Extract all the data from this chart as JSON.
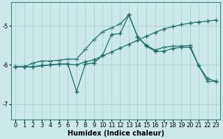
{
  "xlabel": "Humidex (Indice chaleur)",
  "bg_color": "#cce8e8",
  "line_color": "#1a6e6a",
  "xlim": [
    -0.5,
    23.5
  ],
  "ylim": [
    -7.4,
    -4.4
  ],
  "yticks": [
    -7,
    -6,
    -5
  ],
  "grid_color": "#99cccc",
  "marker": "+",
  "marker_size": 5,
  "linewidth": 0.9,
  "xlabel_fontsize": 7,
  "tick_fontsize": 6,
  "line1_x": [
    0,
    1,
    2,
    3,
    4,
    5,
    6,
    7,
    8,
    9,
    10,
    11,
    12,
    13,
    14,
    15,
    16,
    17,
    18,
    19,
    20,
    21,
    22,
    23
  ],
  "line1_y": [
    -6.05,
    -6.05,
    -5.95,
    -5.9,
    -5.9,
    -5.88,
    -5.85,
    -5.85,
    -5.6,
    -5.35,
    -5.15,
    -5.05,
    -4.95,
    -4.72,
    -5.28,
    -5.5,
    -5.62,
    -5.55,
    -5.52,
    -5.52,
    -5.5,
    -6.02,
    -6.42,
    -6.42
  ],
  "line2_x": [
    0,
    1,
    2,
    3,
    4,
    5,
    6,
    7,
    8,
    9,
    10,
    11,
    12,
    13,
    14,
    15,
    16,
    17,
    18,
    19,
    20,
    21,
    22,
    23
  ],
  "line2_y": [
    -6.05,
    -6.05,
    -6.05,
    -6.02,
    -6.0,
    -5.98,
    -5.98,
    -6.0,
    -5.92,
    -5.87,
    -5.77,
    -5.67,
    -5.57,
    -5.47,
    -5.37,
    -5.27,
    -5.17,
    -5.08,
    -5.02,
    -4.97,
    -4.93,
    -4.9,
    -4.88,
    -4.85
  ],
  "line3_x": [
    0,
    1,
    2,
    3,
    4,
    5,
    6,
    7,
    8,
    9,
    10,
    11,
    12,
    13,
    14,
    15,
    16,
    17,
    18,
    19,
    20,
    21,
    22,
    23
  ],
  "line3_y": [
    -6.05,
    -6.05,
    -6.05,
    -6.02,
    -6.0,
    -5.98,
    -5.98,
    -6.68,
    -5.98,
    -5.95,
    -5.75,
    -5.22,
    -5.2,
    -4.72,
    -5.28,
    -5.52,
    -5.65,
    -5.65,
    -5.58,
    -5.55,
    -5.55,
    -6.02,
    -6.35,
    -6.42
  ]
}
